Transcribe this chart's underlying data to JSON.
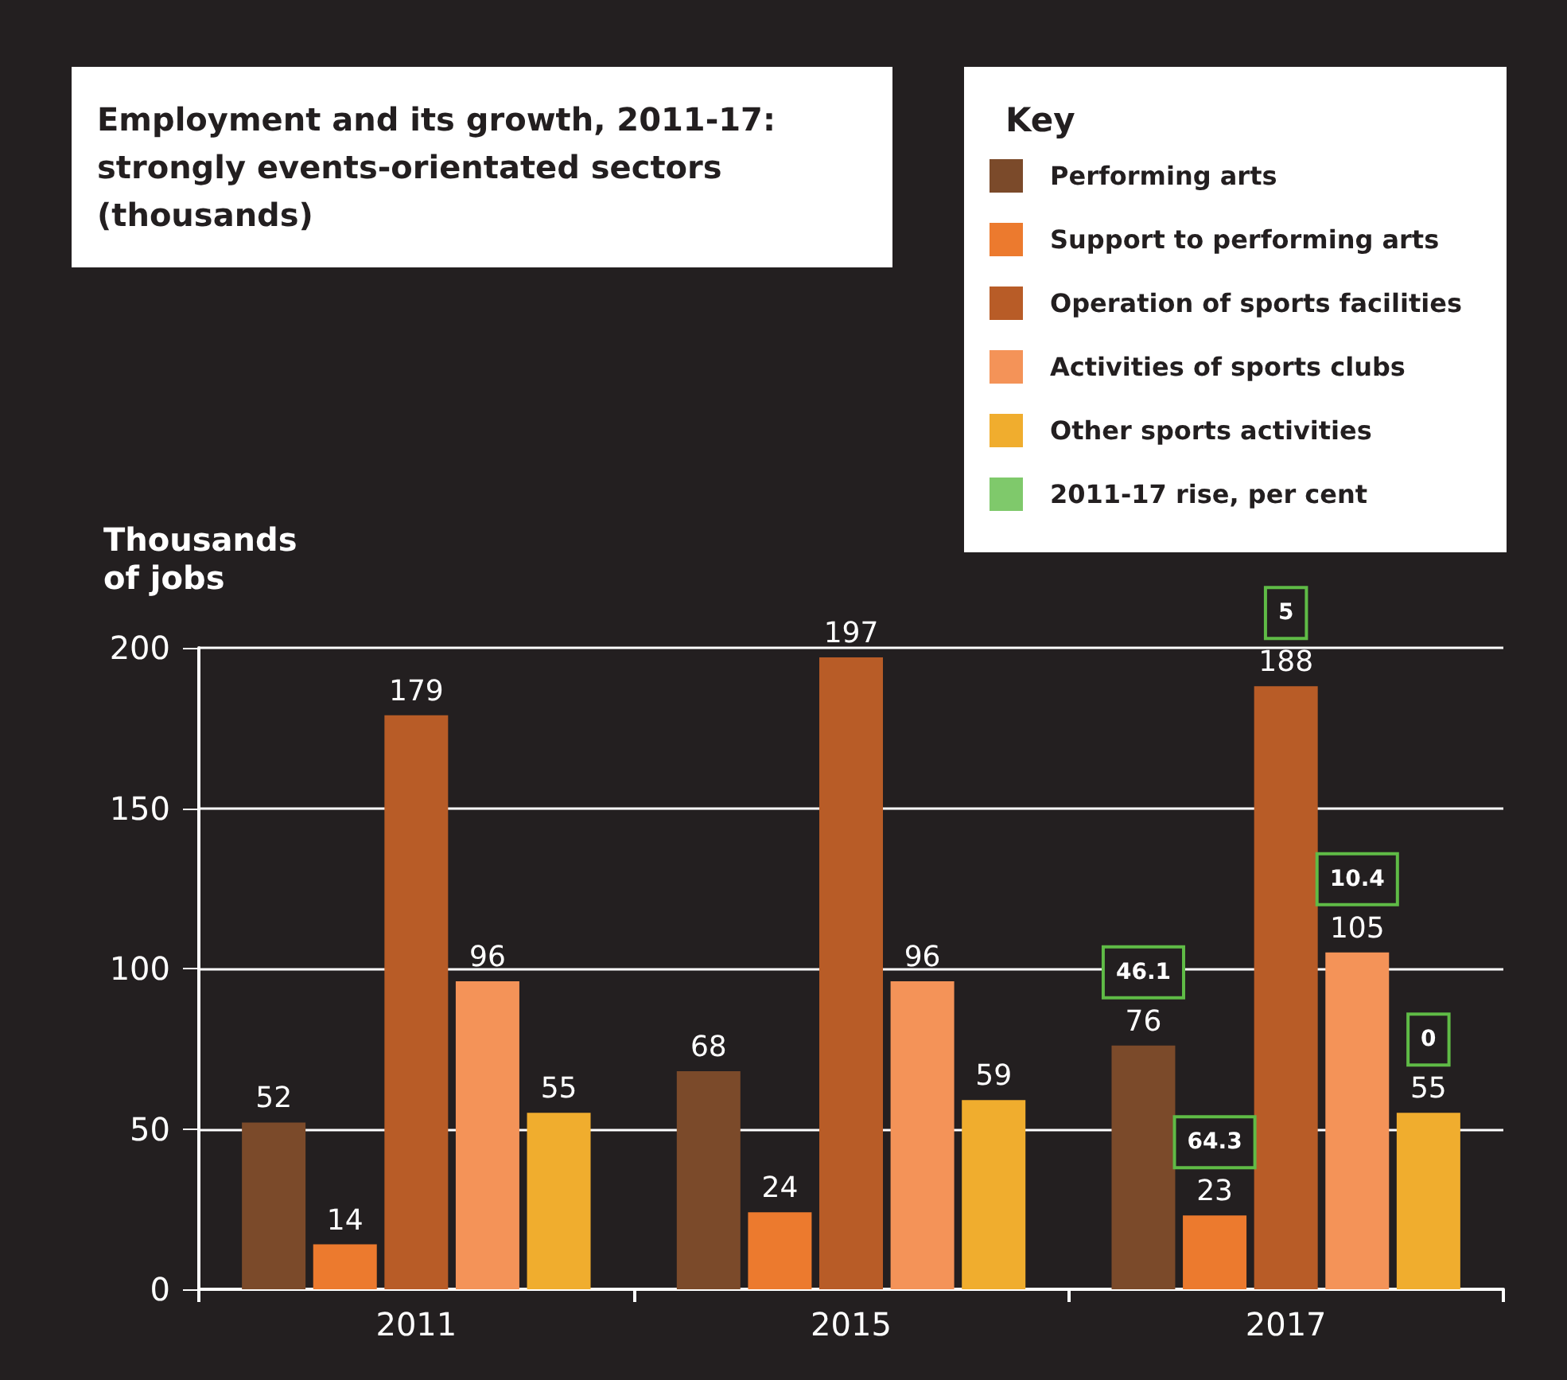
{
  "chart_data": {
    "type": "bar",
    "title": "Employment and its growth, 2011-17: strongly events-orientated sectors (thousands)",
    "ylabel": "Thousands of jobs",
    "legend_title": "Key",
    "categories": [
      "2011",
      "2015",
      "2017"
    ],
    "series": [
      {
        "name": "Performing arts",
        "color": "#7b4a2a",
        "values": [
          52,
          68,
          76
        ]
      },
      {
        "name": "Support to performing arts",
        "color": "#ec7a2e",
        "values": [
          14,
          24,
          23
        ]
      },
      {
        "name": "Operation of sports facilities",
        "color": "#b85c27",
        "values": [
          179,
          197,
          188
        ]
      },
      {
        "name": "Activities of sports clubs",
        "color": "#f49358",
        "values": [
          96,
          96,
          105
        ]
      },
      {
        "name": "Other sports activities",
        "color": "#f0ad2e",
        "values": [
          55,
          59,
          55
        ]
      },
      {
        "name": "2011-17 rise, per cent",
        "color": "#5fbb46",
        "type": "scatter",
        "values": [
          null,
          null,
          null
        ]
      }
    ],
    "annotations": [
      "46.1",
      "64.3",
      "5",
      "10.4",
      "0"
    ],
    "ylim": [
      0,
      200
    ],
    "yticks": [
      0,
      50,
      100,
      150,
      200
    ],
    "grid": "y",
    "data_labels": true,
    "legend": "top right"
  }
}
